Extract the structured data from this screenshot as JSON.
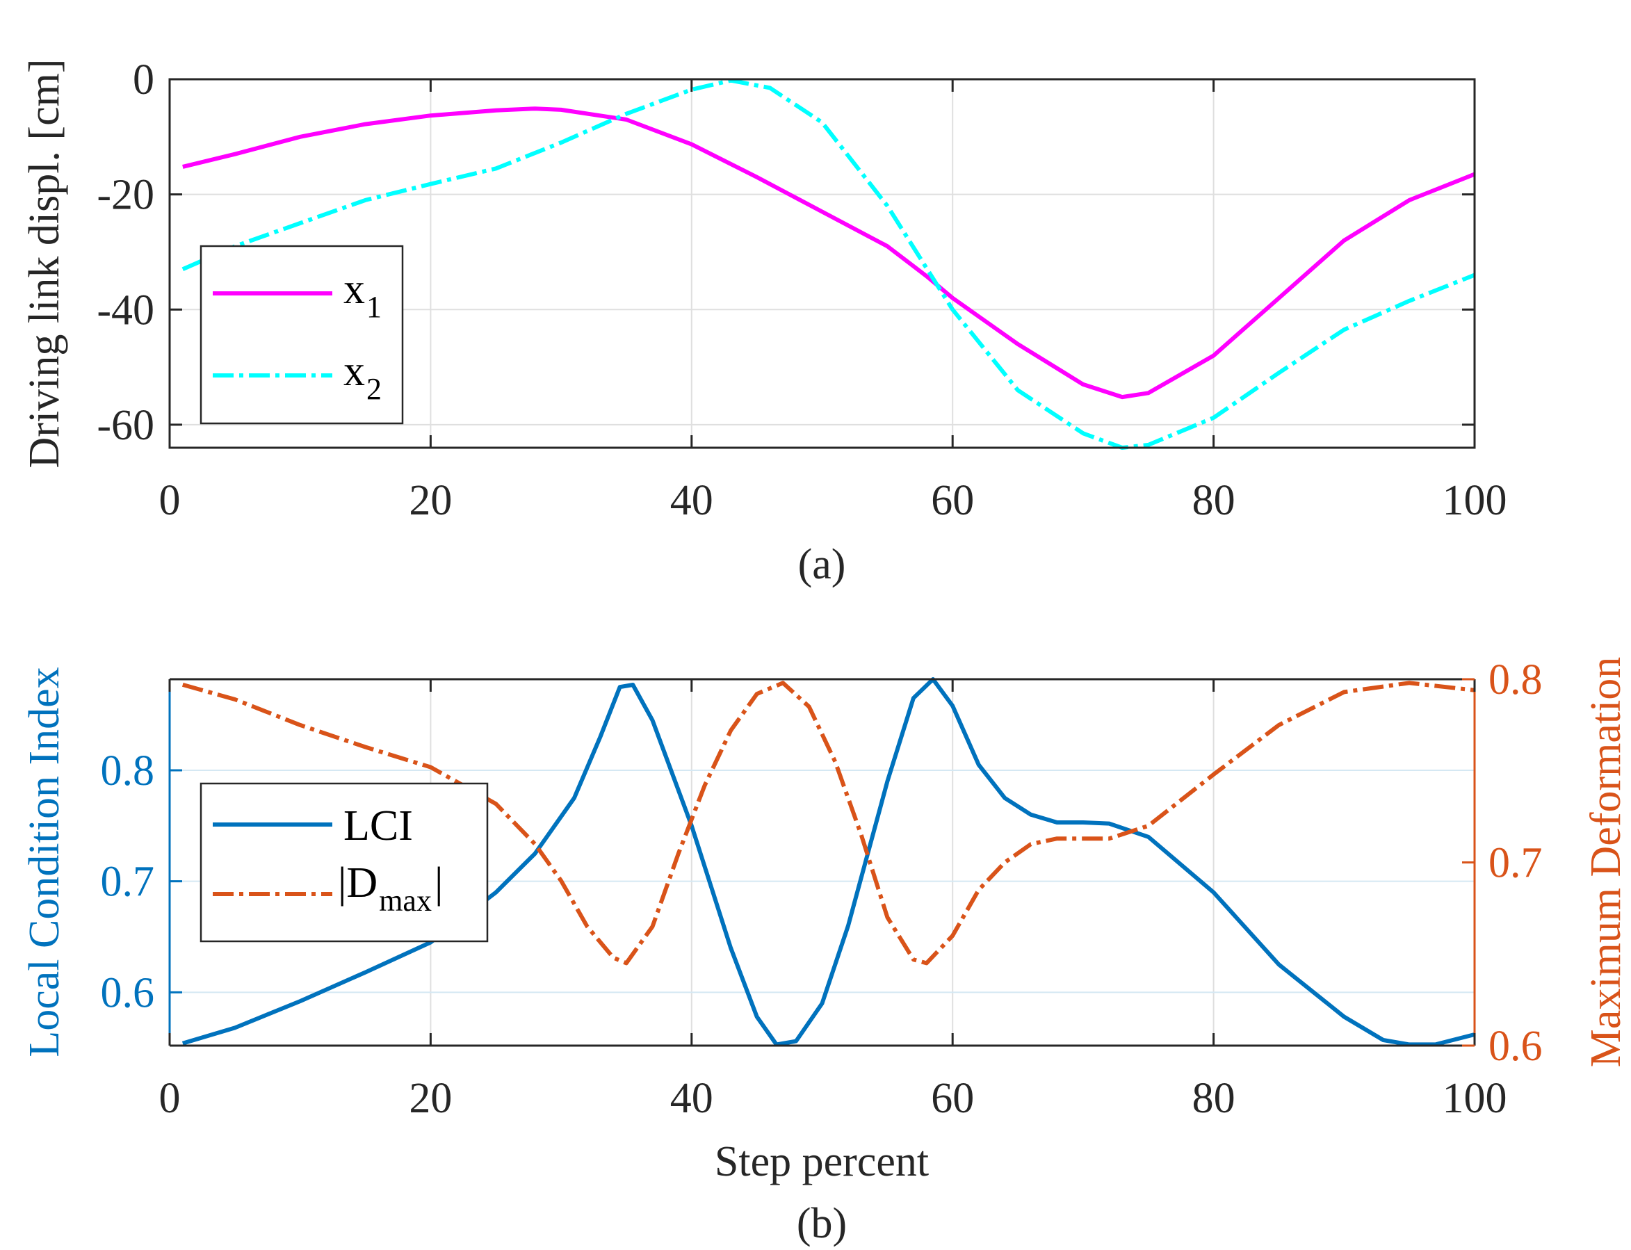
{
  "colors": {
    "x1": "#ff00ff",
    "x2": "#00ffff",
    "lci": "#0072bd",
    "dmax": "#d95319",
    "grid": "#dfdfdf",
    "grid_b": "#d5e8f3",
    "axis": "#262626"
  },
  "chart_data": [
    {
      "type": "line",
      "panel": "(a)",
      "caption": "(a)",
      "title": "",
      "xlabel": "",
      "ylabel": "Driving link displ. [cm]",
      "xlim": [
        0,
        100
      ],
      "ylim": [
        -64,
        0
      ],
      "xticks": [
        0,
        20,
        40,
        60,
        80,
        100
      ],
      "xtick_labels": [
        "0",
        "20",
        "40",
        "60",
        "80",
        "100"
      ],
      "yticks": [
        0,
        -20,
        -40,
        -60
      ],
      "ytick_labels": [
        "0",
        "-20",
        "-40",
        "-60"
      ],
      "grid": true,
      "legend": {
        "placement": "middle-left",
        "entries": [
          {
            "label": "x",
            "sub": "1",
            "style": "solid",
            "color": "#ff00ff"
          },
          {
            "label": "x",
            "sub": "2",
            "style": "dash-dot",
            "color": "#00ffff"
          }
        ]
      },
      "series": [
        {
          "name": "x1",
          "style": "solid",
          "color": "#ff00ff",
          "points": [
            [
              1,
              -15.2
            ],
            [
              5,
              -13
            ],
            [
              10,
              -10
            ],
            [
              15,
              -7.8
            ],
            [
              20,
              -6.3
            ],
            [
              25,
              -5.4
            ],
            [
              28,
              -5.1
            ],
            [
              30,
              -5.3
            ],
            [
              35,
              -7
            ],
            [
              40,
              -11.3
            ],
            [
              45,
              -17
            ],
            [
              50,
              -23
            ],
            [
              55,
              -29
            ],
            [
              58,
              -34.2
            ],
            [
              60,
              -38
            ],
            [
              65,
              -46
            ],
            [
              70,
              -53
            ],
            [
              73,
              -55.2
            ],
            [
              75,
              -54.5
            ],
            [
              80,
              -48
            ],
            [
              85,
              -38
            ],
            [
              90,
              -28
            ],
            [
              95,
              -21
            ],
            [
              100,
              -16.5
            ]
          ]
        },
        {
          "name": "x2",
          "style": "dash-dot",
          "color": "#00ffff",
          "points": [
            [
              1,
              -33
            ],
            [
              5,
              -29
            ],
            [
              10,
              -25
            ],
            [
              15,
              -21
            ],
            [
              20,
              -18.2
            ],
            [
              25,
              -15.5
            ],
            [
              30,
              -11
            ],
            [
              35,
              -6
            ],
            [
              40,
              -1.8
            ],
            [
              43,
              -0.2
            ],
            [
              46,
              -1.5
            ],
            [
              50,
              -7.5
            ],
            [
              55,
              -22
            ],
            [
              60,
              -40
            ],
            [
              65,
              -54
            ],
            [
              70,
              -61.5
            ],
            [
              73,
              -64
            ],
            [
              75,
              -63.5
            ],
            [
              80,
              -58.8
            ],
            [
              85,
              -51
            ],
            [
              90,
              -43.5
            ],
            [
              95,
              -38.5
            ],
            [
              100,
              -34
            ]
          ]
        }
      ]
    },
    {
      "type": "line",
      "panel": "(b)",
      "caption": "(b)",
      "title": "",
      "xlabel": "Step percent",
      "ylabel_left": "Local Condition Index",
      "ylabel_right": "Maximum Deformation",
      "xlim": [
        0,
        100
      ],
      "ylim_left": [
        0.552,
        0.882
      ],
      "ylim_right": [
        0.6,
        0.8
      ],
      "xticks": [
        0,
        20,
        40,
        60,
        80,
        100
      ],
      "xtick_labels": [
        "0",
        "20",
        "40",
        "60",
        "80",
        "100"
      ],
      "yticks_left": [
        0.6,
        0.7,
        0.8
      ],
      "ytick_labels_left": [
        "0.6",
        "0.7",
        "0.8"
      ],
      "yticks_right": [
        0.6,
        0.7,
        0.8
      ],
      "ytick_labels_right": [
        "0.6",
        "0.7",
        "0.8"
      ],
      "grid": true,
      "legend": {
        "placement": "middle-left",
        "entries": [
          {
            "label": "LCI",
            "sub": "",
            "close": "",
            "style": "solid",
            "color": "#0072bd"
          },
          {
            "label": "|D",
            "sub": "max",
            "close": "|",
            "style": "dash-dot",
            "color": "#d95319"
          }
        ]
      },
      "series": [
        {
          "name": "LCI",
          "axis": "left",
          "style": "solid",
          "color": "#0072bd",
          "points": [
            [
              1,
              0.554
            ],
            [
              5,
              0.568
            ],
            [
              10,
              0.592
            ],
            [
              15,
              0.618
            ],
            [
              20,
              0.645
            ],
            [
              25,
              0.69
            ],
            [
              28,
              0.725
            ],
            [
              31,
              0.775
            ],
            [
              33,
              0.83
            ],
            [
              34.5,
              0.875
            ],
            [
              35.5,
              0.877
            ],
            [
              37,
              0.845
            ],
            [
              40,
              0.75
            ],
            [
              43,
              0.64
            ],
            [
              45,
              0.578
            ],
            [
              46.5,
              0.553
            ],
            [
              48,
              0.556
            ],
            [
              50,
              0.59
            ],
            [
              52,
              0.66
            ],
            [
              55,
              0.79
            ],
            [
              57,
              0.865
            ],
            [
              58.5,
              0.882
            ],
            [
              60,
              0.858
            ],
            [
              62,
              0.805
            ],
            [
              64,
              0.775
            ],
            [
              66,
              0.76
            ],
            [
              68,
              0.753
            ],
            [
              70,
              0.753
            ],
            [
              72,
              0.752
            ],
            [
              75,
              0.74
            ],
            [
              80,
              0.69
            ],
            [
              85,
              0.625
            ],
            [
              90,
              0.578
            ],
            [
              93,
              0.557
            ],
            [
              95,
              0.553
            ],
            [
              97,
              0.553
            ],
            [
              100,
              0.562
            ]
          ]
        },
        {
          "name": "|Dmax|",
          "axis": "right",
          "style": "dash-dot",
          "color": "#d95319",
          "points": [
            [
              1,
              0.797
            ],
            [
              5,
              0.789
            ],
            [
              10,
              0.775
            ],
            [
              15,
              0.763
            ],
            [
              20,
              0.752
            ],
            [
              25,
              0.732
            ],
            [
              28,
              0.71
            ],
            [
              30,
              0.69
            ],
            [
              32,
              0.665
            ],
            [
              34,
              0.648
            ],
            [
              35,
              0.645
            ],
            [
              37,
              0.665
            ],
            [
              39,
              0.705
            ],
            [
              41,
              0.742
            ],
            [
              43,
              0.772
            ],
            [
              45,
              0.792
            ],
            [
              47,
              0.798
            ],
            [
              49,
              0.785
            ],
            [
              51,
              0.755
            ],
            [
              53,
              0.715
            ],
            [
              55,
              0.67
            ],
            [
              57,
              0.647
            ],
            [
              58,
              0.645
            ],
            [
              60,
              0.66
            ],
            [
              62,
              0.685
            ],
            [
              64,
              0.7
            ],
            [
              66,
              0.71
            ],
            [
              68,
              0.713
            ],
            [
              70,
              0.713
            ],
            [
              72,
              0.713
            ],
            [
              75,
              0.72
            ],
            [
              80,
              0.748
            ],
            [
              85,
              0.775
            ],
            [
              90,
              0.793
            ],
            [
              95,
              0.798
            ],
            [
              100,
              0.794
            ]
          ]
        }
      ]
    }
  ]
}
